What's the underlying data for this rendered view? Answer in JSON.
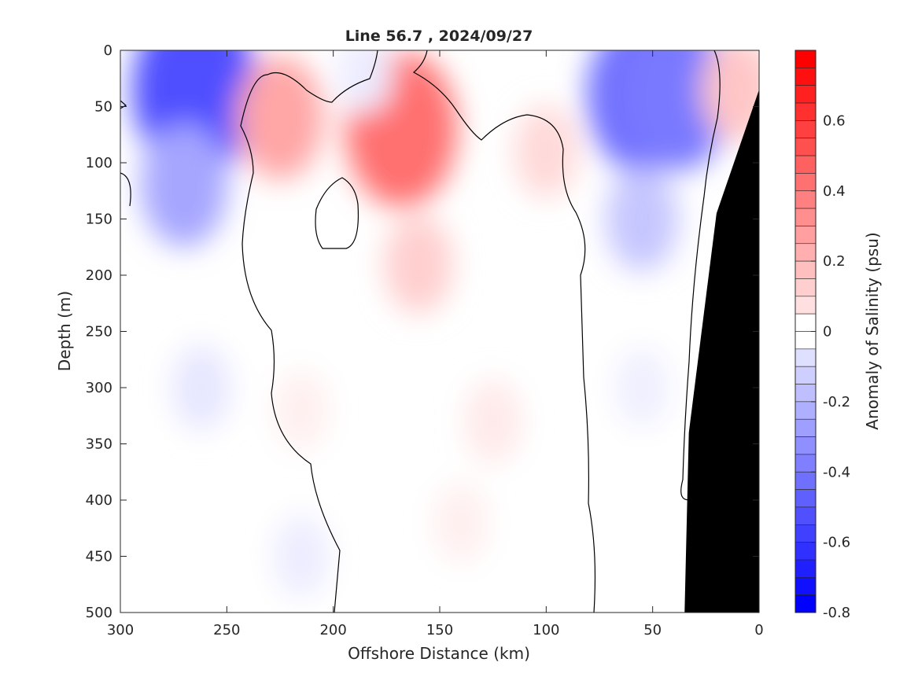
{
  "chart_data": {
    "type": "heatmap",
    "title": "Line 56.7 , 2024/09/27",
    "xlabel": "Offshore Distance (km)",
    "ylabel": "Depth (m)",
    "xlim": [
      300,
      0
    ],
    "ylim": [
      0,
      500
    ],
    "x_reversed": true,
    "y_reversed": true,
    "xticks": [
      300,
      250,
      200,
      150,
      100,
      50,
      0
    ],
    "yticks": [
      0,
      50,
      100,
      150,
      200,
      250,
      300,
      350,
      400,
      450,
      500
    ],
    "colorbar": {
      "label": "Anomaly of Salinity (psu)",
      "range": [
        -0.8,
        0.8
      ],
      "step": 0.05,
      "ticks": [
        -0.8,
        -0.6,
        -0.4,
        -0.2,
        0,
        0.2,
        0.4,
        0.6
      ],
      "colors": {
        "negative": "#0000ff",
        "zero": "#ffffff",
        "positive": "#ff0000"
      }
    },
    "zero_contour_color": "#000000",
    "bottom_mask_color": "#000000",
    "grid": false,
    "anomaly_features": [
      {
        "x": 265,
        "depth": 35,
        "value": -0.55
      },
      {
        "x": 270,
        "depth": 120,
        "value": -0.28
      },
      {
        "x": 262,
        "depth": 300,
        "value": -0.08
      },
      {
        "x": 225,
        "depth": 60,
        "value": 0.28
      },
      {
        "x": 168,
        "depth": 70,
        "value": 0.45
      },
      {
        "x": 160,
        "depth": 190,
        "value": 0.15
      },
      {
        "x": 125,
        "depth": 330,
        "value": 0.07
      },
      {
        "x": 140,
        "depth": 420,
        "value": 0.05
      },
      {
        "x": 215,
        "depth": 320,
        "value": 0.05
      },
      {
        "x": 100,
        "depth": 90,
        "value": 0.12
      },
      {
        "x": 185,
        "depth": 20,
        "value": -0.06
      },
      {
        "x": 55,
        "depth": 40,
        "value": -0.45
      },
      {
        "x": 38,
        "depth": 40,
        "value": -0.42
      },
      {
        "x": 55,
        "depth": 150,
        "value": -0.18
      },
      {
        "x": 55,
        "depth": 300,
        "value": -0.05
      },
      {
        "x": 10,
        "depth": 35,
        "value": 0.18
      },
      {
        "x": 215,
        "depth": 450,
        "value": -0.06
      }
    ],
    "bathymetry": [
      [
        0,
        35
      ],
      [
        20,
        145
      ],
      [
        33,
        340
      ],
      [
        35,
        500
      ]
    ]
  }
}
